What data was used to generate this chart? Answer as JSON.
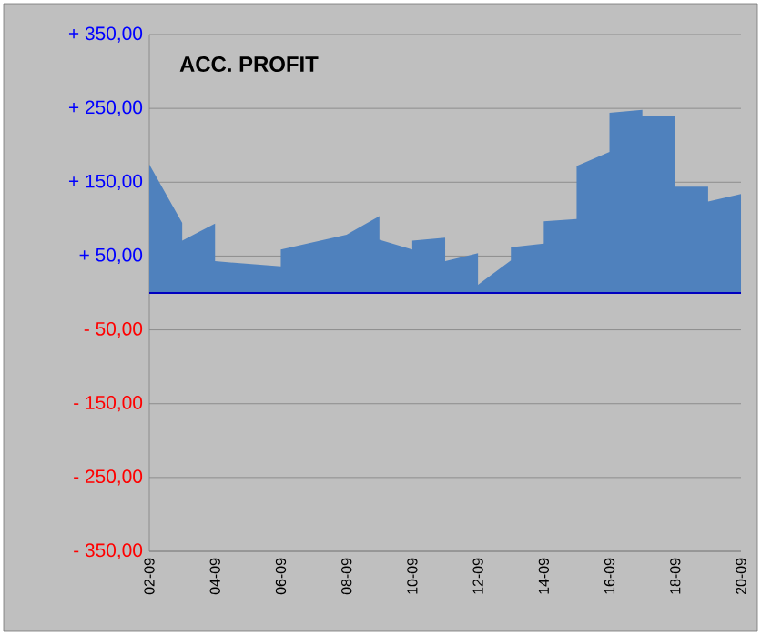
{
  "chart_data": {
    "type": "area",
    "title": "ACC. PROFIT",
    "x": [
      "--09-02",
      "--09-03",
      "--09-03",
      "--09-04",
      "--09-04",
      "--09-06",
      "--09-06",
      "--09-08",
      "--09-09",
      "--09-09",
      "--09-10",
      "--09-10",
      "--09-11",
      "--09-11",
      "--09-12",
      "--09-12",
      "--09-13",
      "--09-13",
      "--09-14",
      "--09-14",
      "--09-15",
      "--09-15",
      "--09-16",
      "--09-16",
      "--09-17",
      "--09-17",
      "--09-18",
      "--09-18",
      "--09-19",
      "--09-19",
      "--09-20"
    ],
    "values": [
      174,
      95,
      71,
      94,
      43,
      36,
      59,
      79,
      104,
      72,
      59,
      71,
      75,
      43,
      54,
      11,
      44,
      62,
      67,
      97,
      100,
      172,
      191,
      244,
      248,
      240,
      240,
      144,
      144,
      124,
      134
    ],
    "color": "#4f81bd",
    "xlim": [
      "--09-02",
      "--09-20"
    ],
    "xticks": [
      {
        "value": "--09-02",
        "label": "02-09"
      },
      {
        "value": "--09-04",
        "label": "04-09"
      },
      {
        "value": "--09-06",
        "label": "06-09"
      },
      {
        "value": "--09-08",
        "label": "08-09"
      },
      {
        "value": "--09-10",
        "label": "10-09"
      },
      {
        "value": "--09-12",
        "label": "12-09"
      },
      {
        "value": "--09-14",
        "label": "14-09"
      },
      {
        "value": "--09-16",
        "label": "16-09"
      },
      {
        "value": "--09-18",
        "label": "18-09"
      },
      {
        "value": "--09-20",
        "label": "20-09"
      }
    ],
    "ylim": [
      -350,
      350
    ],
    "yticks": [
      {
        "value": -350,
        "label": "- 350,00"
      },
      {
        "value": -250,
        "label": "- 250,00"
      },
      {
        "value": -150,
        "label": "- 150,00"
      },
      {
        "value": -50,
        "label": "- 50,00"
      },
      {
        "value": 50,
        "label": "+ 50,00"
      },
      {
        "value": 150,
        "label": "+ 150,00"
      },
      {
        "value": 250,
        "label": "+ 250,00"
      },
      {
        "value": 350,
        "label": "+ 350,00"
      }
    ],
    "ref_lines": [
      {
        "axis": "y",
        "value": 0,
        "color": "#0000c0"
      }
    ],
    "grid": "y"
  }
}
